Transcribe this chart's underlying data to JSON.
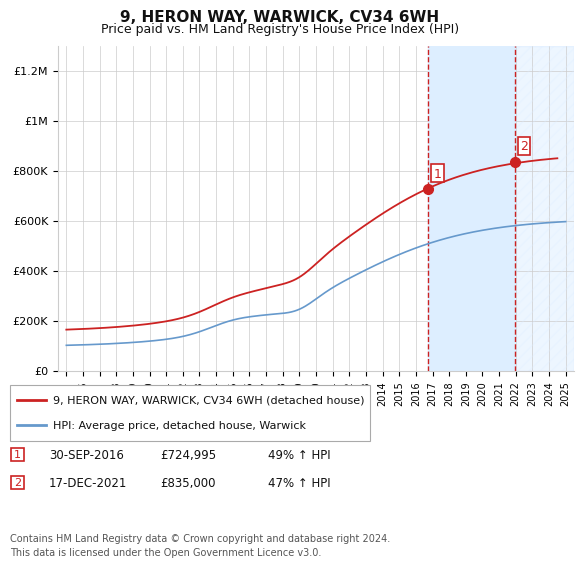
{
  "title": "9, HERON WAY, WARWICK, CV34 6WH",
  "subtitle": "Price paid vs. HM Land Registry's House Price Index (HPI)",
  "xlabel": "",
  "ylabel": "",
  "ylim": [
    0,
    1300000
  ],
  "yticks": [
    0,
    200000,
    400000,
    600000,
    800000,
    1000000,
    1200000
  ],
  "ytick_labels": [
    "£0",
    "£200K",
    "£400K",
    "£600K",
    "£800K",
    "£1M",
    "£1.2M"
  ],
  "start_year": 1995,
  "end_year": 2025,
  "transaction1": {
    "date": "30-SEP-2016",
    "price": 724995,
    "pct": "49%",
    "label": "1"
  },
  "transaction2": {
    "date": "17-DEC-2021",
    "price": 835000,
    "pct": "47%",
    "label": "2"
  },
  "transaction1_x": 2016.75,
  "transaction2_x": 2021.96,
  "hpi_line_color": "#6699cc",
  "price_line_color": "#cc2222",
  "marker_box_color": "#cc2222",
  "shade_color": "#ddeeff",
  "hatch_color": "#cccccc",
  "legend_label1": "9, HERON WAY, WARWICK, CV34 6WH (detached house)",
  "legend_label2": "HPI: Average price, detached house, Warwick",
  "footer": "Contains HM Land Registry data © Crown copyright and database right 2024.\nThis data is licensed under the Open Government Licence v3.0.",
  "background_color": "#ffffff",
  "grid_color": "#cccccc"
}
